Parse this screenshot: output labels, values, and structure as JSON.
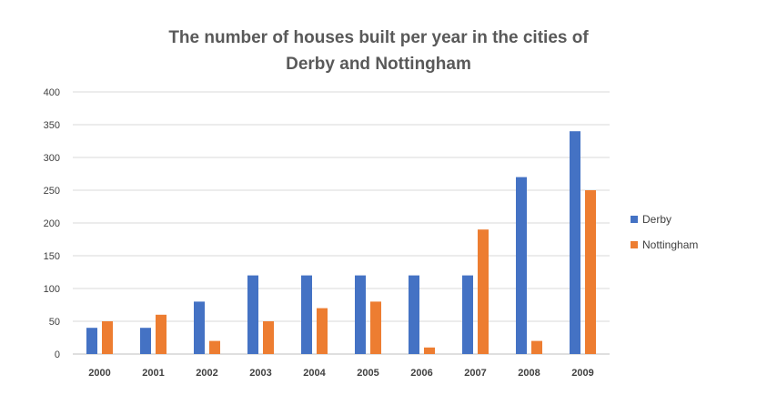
{
  "chart_data": {
    "type": "bar",
    "title_lines": [
      "The number of houses built per year in the cities of",
      "Derby and Nottingham"
    ],
    "categories": [
      "2000",
      "2001",
      "2002",
      "2003",
      "2004",
      "2005",
      "2006",
      "2007",
      "2008",
      "2009"
    ],
    "series": [
      {
        "name": "Derby",
        "values": [
          40,
          40,
          80,
          120,
          120,
          120,
          120,
          120,
          270,
          340
        ]
      },
      {
        "name": "Nottingham",
        "values": [
          50,
          60,
          20,
          50,
          70,
          80,
          10,
          190,
          20,
          250
        ]
      }
    ],
    "yticks": [
      "0",
      "50",
      "100",
      "150",
      "200",
      "250",
      "300",
      "350",
      "400"
    ],
    "ylim": [
      0,
      400
    ],
    "grid": true,
    "legend_position": "right",
    "colors": {
      "Derby": "#4472c4",
      "Nottingham": "#ed7d31"
    }
  }
}
